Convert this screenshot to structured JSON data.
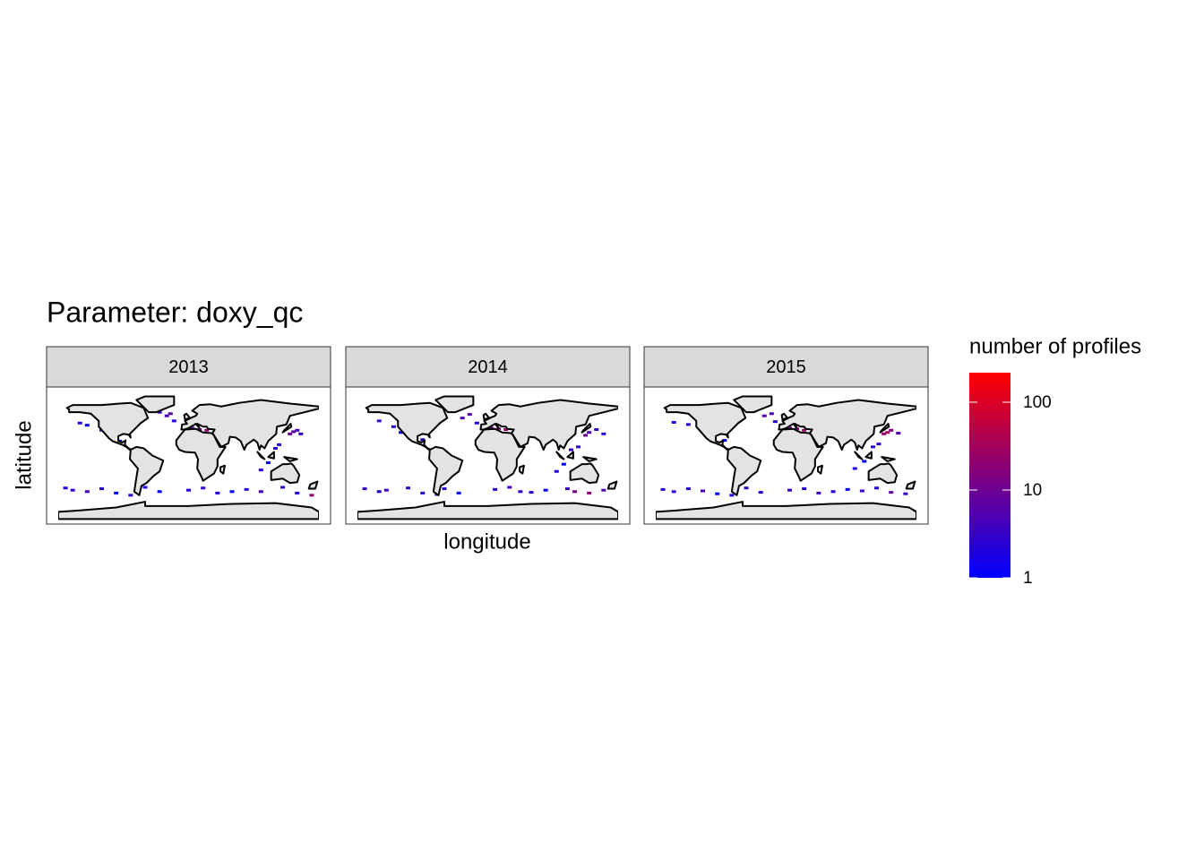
{
  "chart_data": {
    "type": "heatmap",
    "title": "Parameter: doxy_qc",
    "x_label": "longitude",
    "y_label": "latitude",
    "xlim": [
      -180,
      180
    ],
    "ylim": [
      -90,
      90
    ],
    "legend_title": "number of profiles",
    "color_scale": {
      "log": true,
      "low": "#0000ff",
      "high": "#ff0000",
      "lim": [
        1,
        217
      ],
      "ticks": [
        1,
        10,
        100
      ]
    },
    "facets": [
      {
        "label": "2013",
        "lon": [
          -150,
          -140,
          -120,
          -95,
          -30,
          -25,
          -40,
          -20,
          5,
          15,
          25,
          30,
          140,
          145,
          150,
          155,
          120,
          125,
          110,
          100,
          -170,
          -160,
          -140,
          -120,
          -100,
          -80,
          -60,
          -40,
          0,
          20,
          40,
          60,
          80,
          100,
          130,
          150,
          170
        ],
        "lat": [
          45,
          42,
          35,
          20,
          55,
          58,
          60,
          48,
          38,
          36,
          35,
          40,
          30,
          33,
          35,
          30,
          10,
          15,
          -10,
          -20,
          -45,
          -48,
          -50,
          -46,
          -52,
          -55,
          -44,
          -50,
          -48,
          -45,
          -52,
          -50,
          -47,
          -50,
          -44,
          -52,
          -55
        ],
        "values": [
          2,
          1,
          3,
          1,
          4,
          6,
          3,
          2,
          8,
          12,
          20,
          10,
          9,
          6,
          4,
          3,
          2,
          3,
          1,
          2,
          2,
          3,
          4,
          2,
          1,
          3,
          2,
          1,
          2,
          3,
          2,
          1,
          2,
          4,
          3,
          2,
          18
        ]
      },
      {
        "label": "2014",
        "lon": [
          -150,
          -130,
          -120,
          -90,
          -35,
          -25,
          -45,
          -15,
          5,
          15,
          25,
          30,
          135,
          140,
          150,
          160,
          115,
          125,
          105,
          95,
          -170,
          -150,
          -140,
          -110,
          -90,
          -70,
          -60,
          -40,
          10,
          30,
          45,
          60,
          80,
          110,
          120,
          140,
          160
        ],
        "lat": [
          48,
          40,
          32,
          22,
          52,
          57,
          62,
          45,
          38,
          37,
          36,
          40,
          28,
          32,
          36,
          30,
          8,
          12,
          -12,
          -22,
          -46,
          -50,
          -48,
          -45,
          -52,
          -54,
          -46,
          -52,
          -47,
          -44,
          -50,
          -51,
          -48,
          -46,
          -50,
          -52,
          -48
        ],
        "values": [
          3,
          2,
          1,
          2,
          5,
          7,
          4,
          2,
          10,
          15,
          25,
          14,
          8,
          5,
          3,
          2,
          3,
          2,
          1,
          2,
          3,
          2,
          4,
          3,
          2,
          2,
          3,
          1,
          2,
          4,
          3,
          2,
          1,
          3,
          12,
          20,
          6
        ]
      },
      {
        "label": "2015",
        "lon": [
          -155,
          -135,
          -115,
          -85,
          -30,
          -20,
          -45,
          -15,
          5,
          15,
          25,
          32,
          135,
          140,
          145,
          155,
          120,
          128,
          108,
          95,
          -170,
          -155,
          -135,
          -115,
          -95,
          -75,
          -55,
          -35,
          5,
          25,
          45,
          65,
          85,
          105,
          125,
          145,
          165
        ],
        "lat": [
          46,
          43,
          34,
          21,
          55,
          58,
          61,
          47,
          38,
          37,
          35,
          41,
          30,
          32,
          35,
          31,
          12,
          16,
          -8,
          -18,
          -47,
          -50,
          -46,
          -49,
          -53,
          -55,
          -45,
          -51,
          -48,
          -46,
          -52,
          -50,
          -47,
          -49,
          -45,
          -51,
          -53
        ],
        "values": [
          2,
          3,
          2,
          1,
          6,
          5,
          3,
          2,
          12,
          18,
          30,
          9,
          25,
          40,
          15,
          5,
          2,
          3,
          1,
          2,
          2,
          3,
          2,
          4,
          1,
          2,
          3,
          2,
          3,
          2,
          4,
          2,
          1,
          3,
          2,
          8,
          3
        ]
      }
    ]
  }
}
